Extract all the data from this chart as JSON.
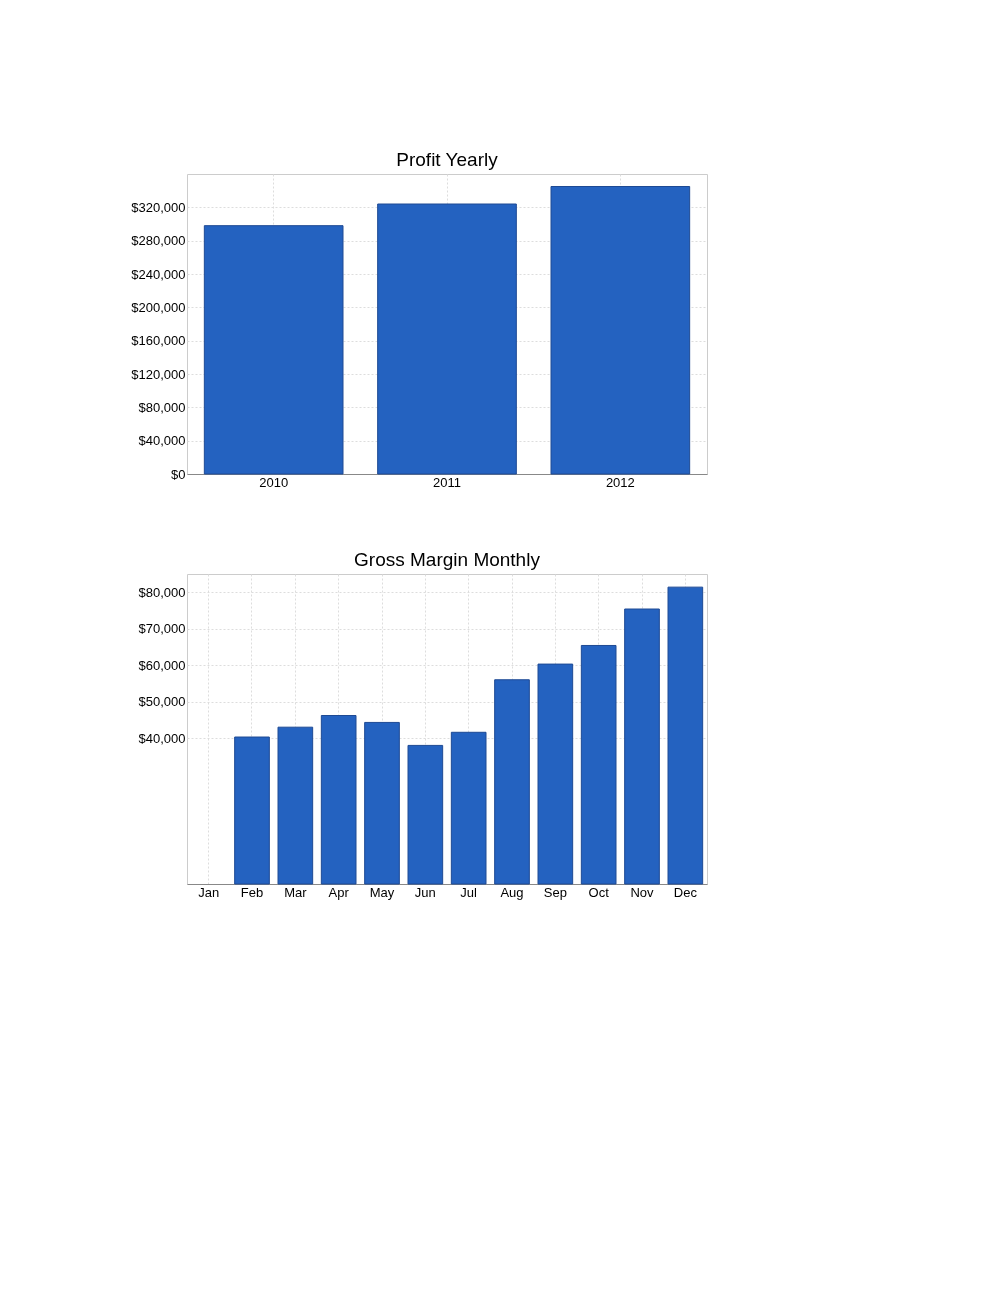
{
  "chart_data": [
    {
      "type": "bar",
      "title": "Profit Yearly",
      "categories": [
        "2010",
        "2011",
        "2012"
      ],
      "values": [
        298000,
        324000,
        345000
      ],
      "color": "#2462c0",
      "ylim": [
        0,
        360000
      ],
      "yticks": [
        {
          "value": 0,
          "label": "$0"
        },
        {
          "value": 40000,
          "label": "$40,000"
        },
        {
          "value": 80000,
          "label": "$80,000"
        },
        {
          "value": 120000,
          "label": "$120,000"
        },
        {
          "value": 160000,
          "label": "$160,000"
        },
        {
          "value": 200000,
          "label": "$200,000"
        },
        {
          "value": 240000,
          "label": "$240,000"
        },
        {
          "value": 280000,
          "label": "$280,000"
        },
        {
          "value": 320000,
          "label": "$320,000"
        }
      ],
      "grid": true,
      "legend": false
    },
    {
      "type": "bar",
      "title": "Gross Margin Monthly",
      "categories": [
        "Jan",
        "Feb",
        "Mar",
        "Apr",
        "May",
        "Jun",
        "Jul",
        "Aug",
        "Sep",
        "Oct",
        "Nov",
        "Dec"
      ],
      "values": [
        null,
        40300,
        43000,
        46200,
        44300,
        38000,
        41600,
        56000,
        60300,
        65400,
        75400,
        81400
      ],
      "color": "#2462c0",
      "ylim": [
        0,
        85000
      ],
      "yticks": [
        {
          "value": 40000,
          "label": "$40,000"
        },
        {
          "value": 50000,
          "label": "$50,000"
        },
        {
          "value": 60000,
          "label": "$60,000"
        },
        {
          "value": 70000,
          "label": "$70,000"
        },
        {
          "value": 80000,
          "label": "$80,000"
        }
      ],
      "grid": true,
      "legend": false
    }
  ]
}
